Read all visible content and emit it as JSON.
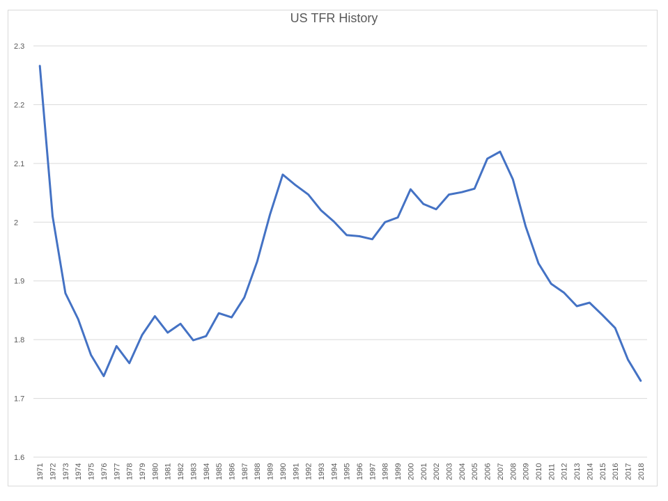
{
  "chart_data": {
    "type": "line",
    "title": "US TFR History",
    "xlabel": "",
    "ylabel": "",
    "ylim": [
      1.6,
      2.3
    ],
    "yticks": [
      "2.3",
      "2.2",
      "2.1",
      "2",
      "1.9",
      "1.8",
      "1.7",
      "1.6"
    ],
    "grid": true,
    "legend": null,
    "categories": [
      "1971",
      "1972",
      "1973",
      "1974",
      "1975",
      "1976",
      "1977",
      "1978",
      "1979",
      "1980",
      "1981",
      "1982",
      "1983",
      "1984",
      "1985",
      "1986",
      "1987",
      "1988",
      "1989",
      "1990",
      "1991",
      "1992",
      "1993",
      "1994",
      "1995",
      "1996",
      "1997",
      "1998",
      "1999",
      "2000",
      "2001",
      "2002",
      "2003",
      "2004",
      "2005",
      "2006",
      "2007",
      "2008",
      "2009",
      "2010",
      "2011",
      "2012",
      "2013",
      "2014",
      "2015",
      "2016",
      "2017",
      "2018"
    ],
    "series": [
      {
        "name": "US TFR",
        "color": "#4472c4",
        "values": [
          2.266,
          2.01,
          1.879,
          1.835,
          1.774,
          1.738,
          1.789,
          1.76,
          1.808,
          1.84,
          1.812,
          1.827,
          1.799,
          1.806,
          1.845,
          1.838,
          1.872,
          1.933,
          2.013,
          2.081,
          2.063,
          2.047,
          2.02,
          2.001,
          1.978,
          1.976,
          1.971,
          2.0,
          2.008,
          2.056,
          2.031,
          2.022,
          2.047,
          2.051,
          2.057,
          2.108,
          2.12,
          2.073,
          1.993,
          1.93,
          1.895,
          1.88,
          1.857,
          1.863,
          1.842,
          1.82,
          1.766,
          1.73
        ]
      }
    ]
  }
}
